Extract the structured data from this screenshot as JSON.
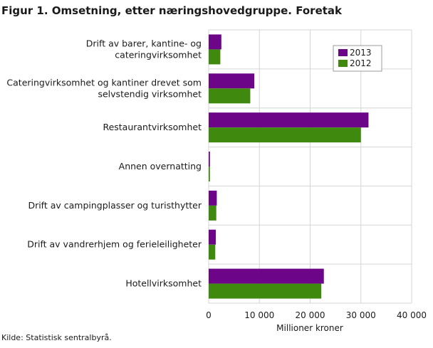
{
  "title": "Figur 1. Omsetning, etter næringshovedgruppe. Foretak",
  "source": "Kilde: Statistisk sentralbyrå.",
  "colors": {
    "2013": "#6c0587",
    "2012": "#3f8a0e",
    "grid": "#d6d6d6",
    "legend_border": "#999999"
  },
  "chart_data": {
    "type": "bar",
    "orientation": "horizontal",
    "categories": [
      [
        "Drift av barer, kantine- og",
        "cateringvirksomhet"
      ],
      [
        "Cateringvirksomhet og kantiner drevet som",
        "selvstendig virksomhet"
      ],
      [
        "Restaurantvirksomhet"
      ],
      [
        "Annen overnatting"
      ],
      [
        "Drift av campingplasser og turisthytter"
      ],
      [
        "Drift av vandrerhjem og ferieleiligheter"
      ],
      [
        "Hotellvirksomhet"
      ]
    ],
    "series": [
      {
        "name": "2013",
        "values": [
          2500,
          9000,
          31500,
          250,
          1600,
          1400,
          22700
        ]
      },
      {
        "name": "2012",
        "values": [
          2300,
          8200,
          30000,
          250,
          1500,
          1300,
          22200
        ]
      }
    ],
    "xlim": [
      0,
      40000
    ],
    "xticks": [
      0,
      10000,
      20000,
      30000,
      40000
    ],
    "xtick_labels": [
      "0",
      "10 000",
      "20 000",
      "30 000",
      "40 000"
    ],
    "xlabel": "Millioner  kroner",
    "grid": true,
    "legend_position": "top-right"
  }
}
